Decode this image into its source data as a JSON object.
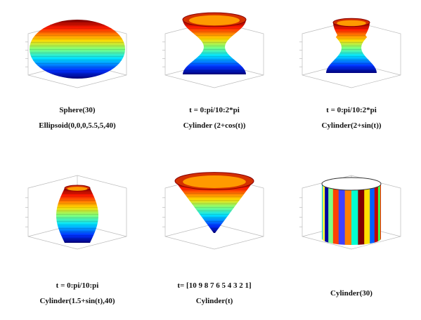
{
  "panels": [
    {
      "caption": [
        "Sphere(30)",
        "Ellipsoid(0,0,0,5.5,5,40)"
      ]
    },
    {
      "caption": [
        "t = 0:pi/10:2*pi",
        "Cylinder (2+cos(t))"
      ]
    },
    {
      "caption": [
        "t = 0:pi/10:2*pi",
        "Cylinder(2+sin(t))"
      ]
    },
    {
      "caption": [
        "t = 0:pi/10:pi",
        "Cylinder(1.5+sin(t),40)"
      ]
    },
    {
      "caption": [
        "t= [10 9 8 7 6 5 4 3 2 1]",
        "Cylinder(t)"
      ]
    },
    {
      "caption": [
        "Cylinder(30)"
      ]
    }
  ]
}
